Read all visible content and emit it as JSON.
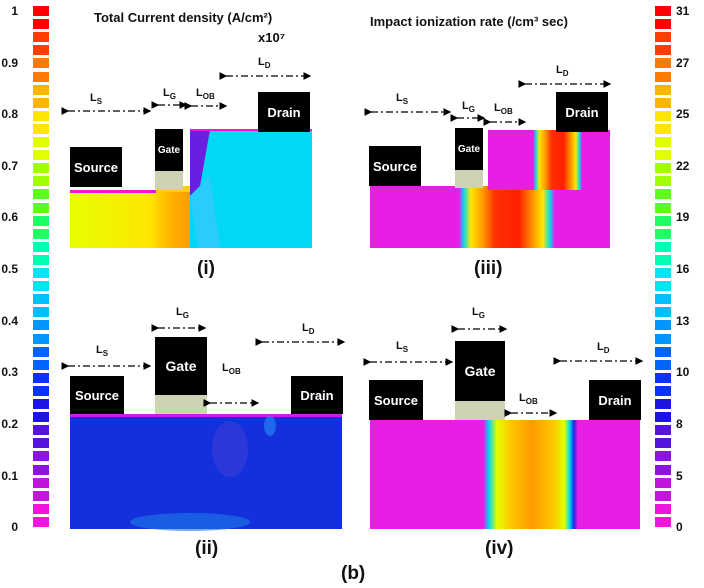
{
  "title_left": "Total Current density (A/cm²)",
  "title_left_multiplier": "x10⁷",
  "title_right": "Impact ionization rate (/cm³ sec)",
  "left_colorbar": {
    "ticks": [
      "1",
      "0.9",
      "0.8",
      "0.7",
      "0.6",
      "0.5",
      "0.4",
      "0.3",
      "0.2",
      "0.1",
      "0"
    ],
    "colors": [
      "#ff0000",
      "#ff3d00",
      "#ff7a00",
      "#ffb400",
      "#ffe600",
      "#e1ff00",
      "#a0ff00",
      "#5cff1e",
      "#1eff64",
      "#00ffb4",
      "#00e6f0",
      "#00bfff",
      "#0096ff",
      "#0064ff",
      "#0a32ff",
      "#1e14e6",
      "#5514dc",
      "#8c14dc",
      "#c314dc",
      "#f014dc"
    ]
  },
  "right_colorbar": {
    "ticks": [
      "31",
      "27",
      "25",
      "22",
      "19",
      "16",
      "13",
      "10",
      "8",
      "5",
      "0"
    ],
    "colors": [
      "#ff0000",
      "#ff3d00",
      "#ff7a00",
      "#ffb400",
      "#ffe600",
      "#e1ff00",
      "#a0ff00",
      "#5cff1e",
      "#1eff64",
      "#00ffb4",
      "#00e6f0",
      "#00bfff",
      "#0096ff",
      "#0064ff",
      "#0a32ff",
      "#1e14e6",
      "#5514dc",
      "#8c14dc",
      "#c314dc",
      "#f014dc"
    ]
  },
  "labels": {
    "ls": "L",
    "ls_sub": "S",
    "lg": "L",
    "lg_sub": "G",
    "lob": "L",
    "lob_sub": "OB",
    "ld": "L",
    "ld_sub": "D",
    "source": "Source",
    "gate": "Gate",
    "drain": "Drain"
  },
  "panels": {
    "i": "(i)",
    "ii": "(ii)",
    "iii": "(iii)",
    "iv": "(iv)"
  },
  "figure_label": "(b)"
}
